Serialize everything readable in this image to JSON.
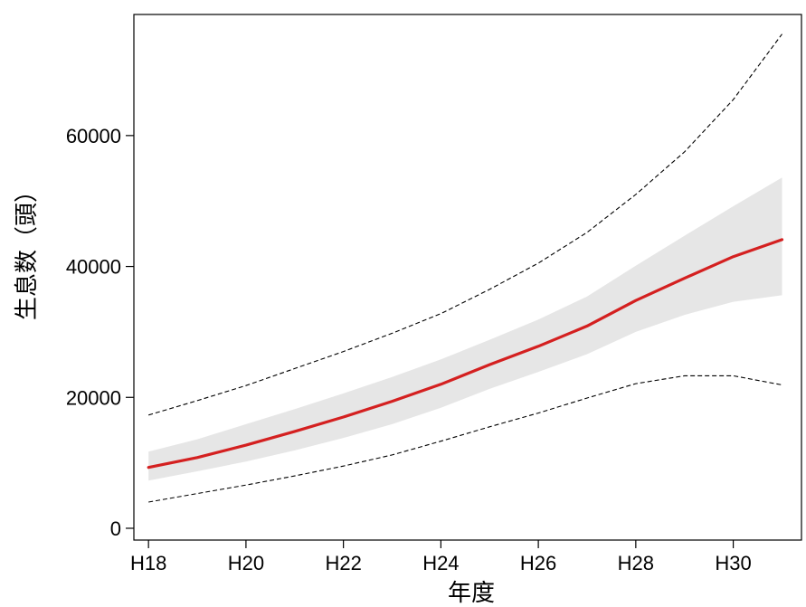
{
  "chart_data": {
    "type": "line",
    "xlabel": "年度",
    "ylabel": "生息数（頭）",
    "x": [
      18,
      19,
      20,
      21,
      22,
      23,
      24,
      25,
      26,
      27,
      28,
      29,
      30,
      31
    ],
    "x_tick_values": [
      18,
      20,
      22,
      24,
      26,
      28,
      30
    ],
    "x_tick_labels": [
      "H18",
      "H20",
      "H22",
      "H24",
      "H26",
      "H28",
      "H30"
    ],
    "y_tick_values": [
      0,
      20000,
      40000,
      60000
    ],
    "y_tick_labels": [
      "0",
      "20000",
      "40000",
      "60000"
    ],
    "xlim": [
      17.7,
      31.4
    ],
    "ylim": [
      -1800,
      78500
    ],
    "grid": false,
    "colors": {
      "median": "#d42020",
      "band": "#e6e6e6",
      "dashed": "#000000"
    },
    "series": [
      {
        "role": "median",
        "values": [
          9300,
          10800,
          12700,
          14800,
          17000,
          19400,
          22000,
          25000,
          27800,
          30900,
          34800,
          38200,
          41500,
          44100
        ]
      },
      {
        "role": "band_upper",
        "values": [
          11700,
          13600,
          15900,
          18200,
          20600,
          23100,
          25800,
          28800,
          31900,
          35400,
          40100,
          44700,
          49200,
          53600
        ]
      },
      {
        "role": "band_lower",
        "values": [
          7300,
          8700,
          10200,
          11900,
          13800,
          15900,
          18400,
          21300,
          23900,
          26600,
          30000,
          32600,
          34600,
          35600
        ]
      },
      {
        "role": "dashed_upper",
        "values": [
          17300,
          19500,
          21800,
          24400,
          27000,
          29800,
          32800,
          36500,
          40500,
          45200,
          51000,
          57500,
          65500,
          75500
        ]
      },
      {
        "role": "dashed_lower",
        "values": [
          4000,
          5300,
          6600,
          8000,
          9500,
          11200,
          13300,
          15500,
          17600,
          19900,
          22100,
          23300,
          23300,
          21900
        ]
      }
    ]
  }
}
